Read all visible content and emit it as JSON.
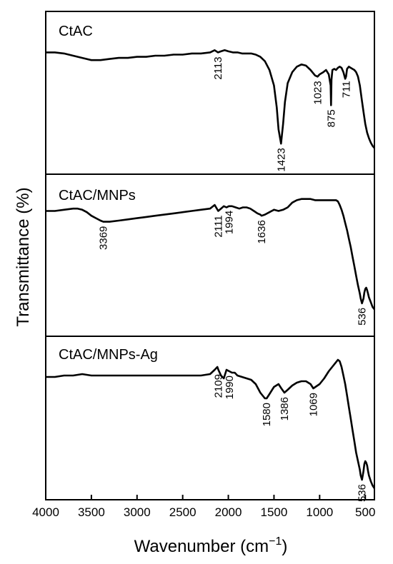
{
  "chart_data": {
    "type": "line",
    "xlabel": "Wavenumber (cm",
    "xlabel_sup": "−1",
    "xlabel_close": ")",
    "ylabel": "Transmittance (%)",
    "xlim": [
      4000,
      400
    ],
    "x_reversed": true,
    "xticks": [
      4000,
      3500,
      3000,
      2500,
      2000,
      1500,
      1000,
      500
    ],
    "xtick_labels": [
      "4000",
      "3500",
      "3000",
      "2500",
      "2000",
      "1500",
      "1000",
      "500"
    ],
    "grid": false,
    "line_color": "#000000",
    "panels": [
      {
        "name": "CtAC",
        "peak_labels": [
          {
            "x": 2113,
            "text": "2113"
          },
          {
            "x": 1423,
            "text": "1423"
          },
          {
            "x": 1023,
            "text": "1023"
          },
          {
            "x": 875,
            "text": "875"
          },
          {
            "x": 711,
            "text": "711"
          }
        ],
        "x": [
          4000,
          3900,
          3800,
          3700,
          3600,
          3500,
          3400,
          3300,
          3200,
          3100,
          3000,
          2900,
          2800,
          2700,
          2600,
          2500,
          2400,
          2300,
          2200,
          2150,
          2113,
          2080,
          2040,
          2000,
          1950,
          1900,
          1850,
          1800,
          1750,
          1700,
          1650,
          1600,
          1550,
          1500,
          1470,
          1450,
          1423,
          1400,
          1380,
          1350,
          1300,
          1250,
          1200,
          1150,
          1100,
          1050,
          1023,
          1000,
          960,
          930,
          900,
          880,
          875,
          870,
          860,
          840,
          820,
          800,
          780,
          760,
          740,
          720,
          711,
          700,
          680,
          660,
          640,
          620,
          600,
          580,
          560,
          540,
          520,
          500,
          480,
          460,
          440,
          420,
          400
        ],
        "values": [
          0.9,
          0.9,
          0.89,
          0.87,
          0.85,
          0.83,
          0.83,
          0.84,
          0.85,
          0.85,
          0.86,
          0.86,
          0.87,
          0.87,
          0.88,
          0.88,
          0.89,
          0.89,
          0.9,
          0.92,
          0.9,
          0.91,
          0.92,
          0.91,
          0.9,
          0.9,
          0.89,
          0.89,
          0.89,
          0.88,
          0.86,
          0.82,
          0.74,
          0.6,
          0.4,
          0.2,
          0.07,
          0.25,
          0.45,
          0.62,
          0.72,
          0.77,
          0.79,
          0.78,
          0.74,
          0.69,
          0.68,
          0.7,
          0.72,
          0.74,
          0.7,
          0.6,
          0.42,
          0.65,
          0.74,
          0.75,
          0.74,
          0.76,
          0.77,
          0.76,
          0.72,
          0.66,
          0.68,
          0.75,
          0.77,
          0.76,
          0.75,
          0.74,
          0.72,
          0.68,
          0.6,
          0.48,
          0.36,
          0.25,
          0.17,
          0.12,
          0.08,
          0.05,
          0.03
        ]
      },
      {
        "name": "CtAC/MNPs",
        "peak_labels": [
          {
            "x": 3369,
            "text": "3369"
          },
          {
            "x": 2111,
            "text": "2111"
          },
          {
            "x": 1994,
            "text": "1994"
          },
          {
            "x": 1636,
            "text": "1636"
          },
          {
            "x": 536,
            "text": "536"
          }
        ],
        "x": [
          4000,
          3900,
          3800,
          3700,
          3650,
          3600,
          3550,
          3500,
          3450,
          3400,
          3369,
          3300,
          3200,
          3100,
          3000,
          2900,
          2800,
          2700,
          2600,
          2500,
          2400,
          2300,
          2200,
          2150,
          2111,
          2080,
          2050,
          2020,
          1994,
          1960,
          1920,
          1880,
          1840,
          1800,
          1760,
          1720,
          1680,
          1650,
          1636,
          1600,
          1550,
          1500,
          1450,
          1400,
          1350,
          1300,
          1250,
          1200,
          1150,
          1100,
          1050,
          1000,
          950,
          900,
          850,
          820,
          800,
          780,
          760,
          740,
          720,
          700,
          680,
          660,
          640,
          620,
          600,
          580,
          560,
          550,
          536,
          520,
          510,
          500,
          490,
          480,
          470,
          460,
          440,
          420,
          400
        ],
        "values": [
          0.86,
          0.86,
          0.87,
          0.88,
          0.88,
          0.87,
          0.85,
          0.82,
          0.8,
          0.78,
          0.77,
          0.77,
          0.78,
          0.79,
          0.8,
          0.81,
          0.82,
          0.83,
          0.84,
          0.85,
          0.86,
          0.87,
          0.88,
          0.91,
          0.86,
          0.88,
          0.9,
          0.89,
          0.9,
          0.9,
          0.89,
          0.88,
          0.89,
          0.89,
          0.88,
          0.86,
          0.84,
          0.83,
          0.82,
          0.83,
          0.85,
          0.87,
          0.86,
          0.87,
          0.89,
          0.93,
          0.95,
          0.96,
          0.96,
          0.96,
          0.95,
          0.95,
          0.95,
          0.95,
          0.95,
          0.95,
          0.94,
          0.91,
          0.87,
          0.82,
          0.76,
          0.7,
          0.63,
          0.56,
          0.48,
          0.4,
          0.32,
          0.24,
          0.17,
          0.13,
          0.09,
          0.13,
          0.18,
          0.21,
          0.22,
          0.2,
          0.17,
          0.14,
          0.1,
          0.06,
          0.04
        ]
      },
      {
        "name": "CtAC/MNPs-Ag",
        "peak_labels": [
          {
            "x": 2109,
            "text": "2109"
          },
          {
            "x": 1990,
            "text": "1990"
          },
          {
            "x": 1580,
            "text": "1580"
          },
          {
            "x": 1386,
            "text": "1386"
          },
          {
            "x": 1069,
            "text": "1069"
          },
          {
            "x": 536,
            "text": "536"
          }
        ],
        "x": [
          4000,
          3900,
          3800,
          3700,
          3600,
          3500,
          3400,
          3300,
          3200,
          3100,
          3000,
          2900,
          2800,
          2700,
          2600,
          2500,
          2400,
          2300,
          2200,
          2150,
          2120,
          2109,
          2080,
          2050,
          2020,
          1990,
          1960,
          1930,
          1900,
          1850,
          1800,
          1750,
          1700,
          1650,
          1600,
          1580,
          1550,
          1500,
          1450,
          1420,
          1386,
          1350,
          1300,
          1250,
          1200,
          1150,
          1100,
          1069,
          1000,
          950,
          900,
          850,
          800,
          780,
          760,
          740,
          720,
          700,
          680,
          660,
          640,
          620,
          600,
          580,
          560,
          550,
          536,
          520,
          510,
          500,
          490,
          480,
          470,
          460,
          440,
          420,
          400
        ],
        "values": [
          0.81,
          0.81,
          0.82,
          0.82,
          0.83,
          0.82,
          0.82,
          0.82,
          0.82,
          0.82,
          0.82,
          0.82,
          0.82,
          0.82,
          0.82,
          0.82,
          0.82,
          0.82,
          0.83,
          0.86,
          0.88,
          0.86,
          0.82,
          0.8,
          0.86,
          0.85,
          0.84,
          0.84,
          0.82,
          0.81,
          0.8,
          0.79,
          0.76,
          0.7,
          0.66,
          0.66,
          0.69,
          0.74,
          0.76,
          0.73,
          0.7,
          0.72,
          0.75,
          0.77,
          0.78,
          0.78,
          0.76,
          0.73,
          0.76,
          0.8,
          0.85,
          0.89,
          0.93,
          0.92,
          0.88,
          0.82,
          0.76,
          0.68,
          0.6,
          0.52,
          0.44,
          0.36,
          0.28,
          0.22,
          0.16,
          0.12,
          0.09,
          0.15,
          0.2,
          0.22,
          0.21,
          0.19,
          0.15,
          0.12,
          0.08,
          0.05,
          0.03
        ]
      }
    ]
  }
}
